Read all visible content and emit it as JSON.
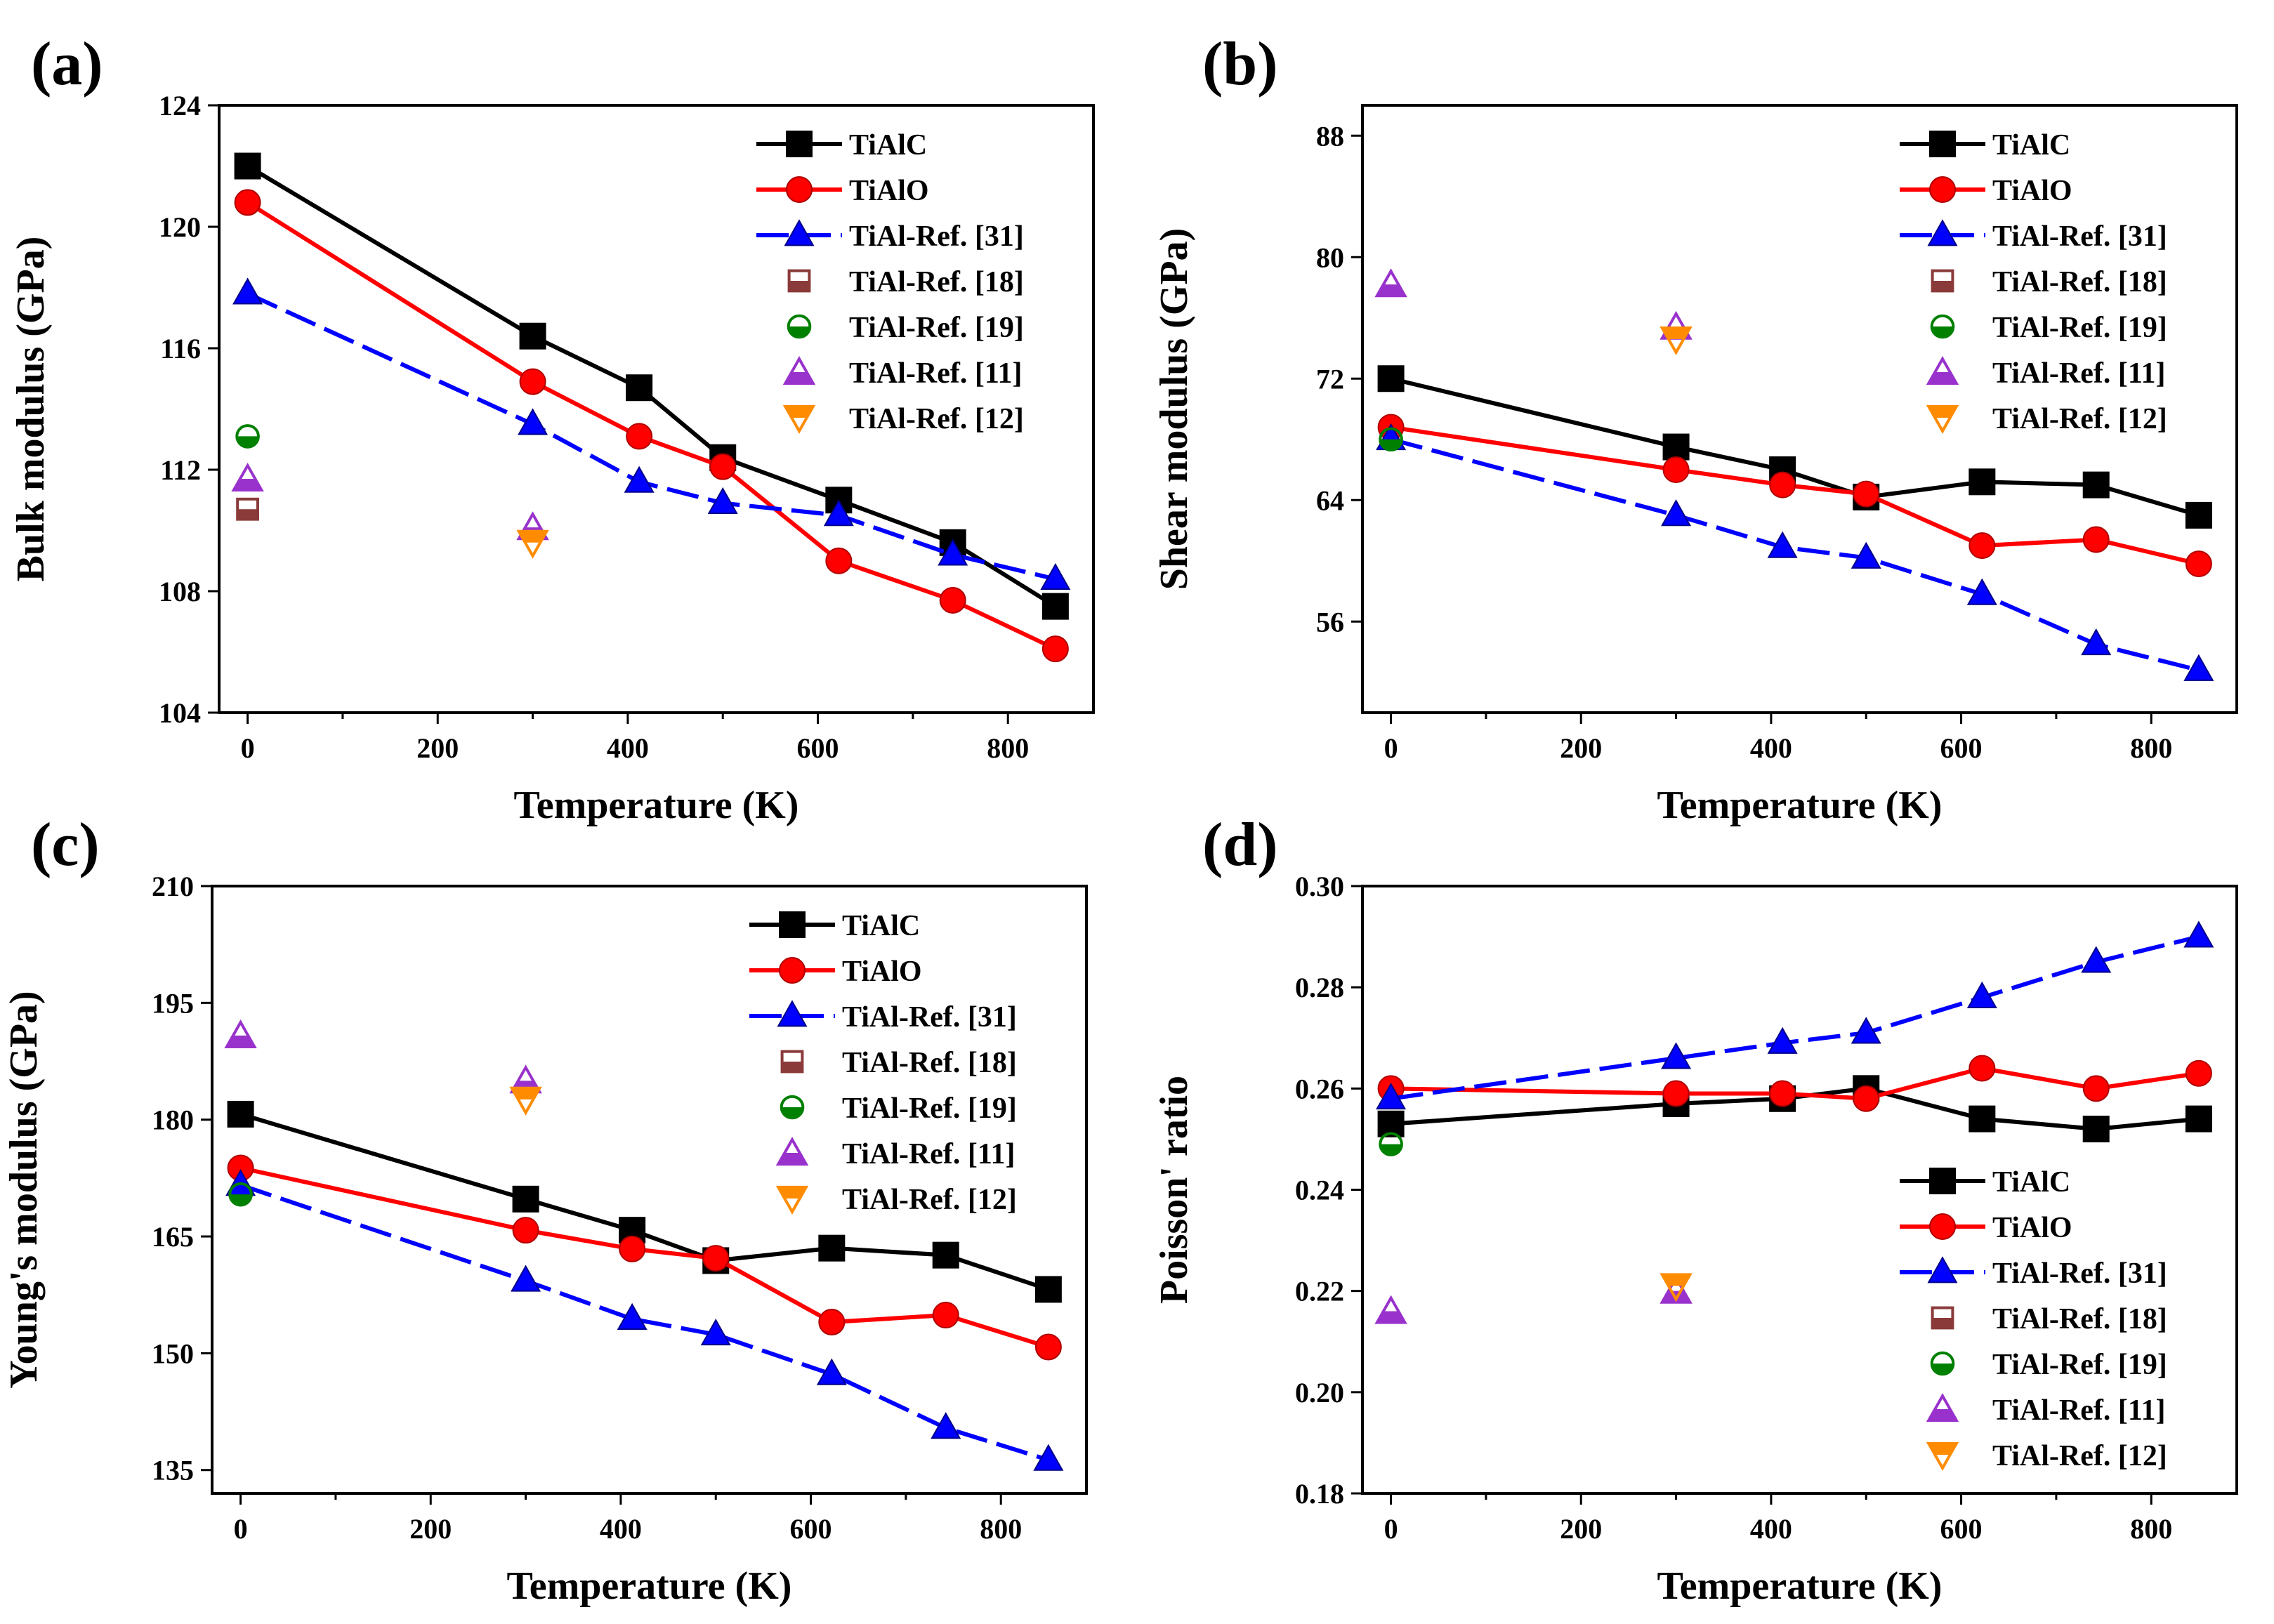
{
  "chart_data": [
    {
      "type": "line",
      "panel": "(a)",
      "xlabel": "Temperature (K)",
      "ylabel": "Bulk modulus (GPa)",
      "xlim": [
        -30,
        890
      ],
      "ylim": [
        104,
        124
      ],
      "xticks": [
        0,
        200,
        400,
        600,
        800
      ],
      "yticks": [
        104,
        108,
        112,
        116,
        120,
        124
      ],
      "legend_position": "top-right",
      "series": [
        {
          "name": "TiAlC",
          "color": "#000000",
          "marker": "square",
          "style": "solid",
          "x": [
            0,
            300,
            412,
            500,
            622,
            742,
            850
          ],
          "y": [
            122.0,
            116.4,
            114.7,
            112.4,
            111.0,
            109.6,
            107.5
          ]
        },
        {
          "name": "TiAlO",
          "color": "#ff0000",
          "marker": "circle",
          "style": "solid",
          "x": [
            0,
            300,
            412,
            500,
            622,
            742,
            850
          ],
          "y": [
            120.8,
            114.9,
            113.1,
            112.1,
            109.0,
            107.7,
            106.1
          ]
        },
        {
          "name": "TiAl-Ref. [31]",
          "color": "#0000ff",
          "marker": "triangle",
          "style": "dashed",
          "x": [
            0,
            300,
            412,
            500,
            622,
            742,
            850
          ],
          "y": [
            117.8,
            113.5,
            111.6,
            110.9,
            110.5,
            109.2,
            108.4
          ]
        },
        {
          "name": "TiAl-Ref. [18]",
          "color": "#8b3a3a",
          "marker": "half-square",
          "style": "none",
          "x": [
            0
          ],
          "y": [
            110.7
          ]
        },
        {
          "name": "TiAl-Ref. [19]",
          "color": "#008000",
          "marker": "half-circle",
          "style": "none",
          "x": [
            0
          ],
          "y": [
            113.1
          ]
        },
        {
          "name": "TiAl-Ref. [11]",
          "color": "#9932cc",
          "marker": "half-triangle-up",
          "style": "none",
          "x": [
            0,
            300
          ],
          "y": [
            111.7,
            110.1
          ]
        },
        {
          "name": "TiAl-Ref. [12]",
          "color": "#ff8c00",
          "marker": "half-triangle-down",
          "style": "none",
          "x": [
            300
          ],
          "y": [
            109.6
          ]
        }
      ]
    },
    {
      "type": "line",
      "panel": "(b)",
      "xlabel": "Temperature (K)",
      "ylabel": "Shear modulus (GPa)",
      "xlim": [
        -30,
        890
      ],
      "ylim": [
        50,
        90
      ],
      "xticks": [
        0,
        200,
        400,
        600,
        800
      ],
      "yticks": [
        56,
        64,
        72,
        80,
        88
      ],
      "legend_position": "top-right",
      "series": [
        {
          "name": "TiAlC",
          "color": "#000000",
          "marker": "square",
          "style": "solid",
          "x": [
            0,
            300,
            412,
            500,
            622,
            742,
            850
          ],
          "y": [
            72.0,
            67.5,
            66.0,
            64.2,
            65.2,
            65.0,
            63.0
          ]
        },
        {
          "name": "TiAlO",
          "color": "#ff0000",
          "marker": "circle",
          "style": "solid",
          "x": [
            0,
            300,
            412,
            500,
            622,
            742,
            850
          ],
          "y": [
            68.8,
            66.0,
            65.0,
            64.4,
            61.0,
            61.4,
            59.8
          ]
        },
        {
          "name": "TiAl-Ref. [31]",
          "color": "#0000ff",
          "marker": "triangle",
          "style": "dashed",
          "x": [
            0,
            300,
            412,
            500,
            622,
            742,
            850
          ],
          "y": [
            68.0,
            63.0,
            60.9,
            60.2,
            57.8,
            54.5,
            52.8
          ]
        },
        {
          "name": "TiAl-Ref. [18]",
          "color": "#8b3a3a",
          "marker": "half-square",
          "style": "none",
          "x": [],
          "y": []
        },
        {
          "name": "TiAl-Ref. [19]",
          "color": "#008000",
          "marker": "half-circle",
          "style": "none",
          "x": [
            0
          ],
          "y": [
            68.0
          ]
        },
        {
          "name": "TiAl-Ref. [11]",
          "color": "#9932cc",
          "marker": "half-triangle-up",
          "style": "none",
          "x": [
            0,
            300
          ],
          "y": [
            78.2,
            75.4
          ]
        },
        {
          "name": "TiAl-Ref. [12]",
          "color": "#ff8c00",
          "marker": "half-triangle-down",
          "style": "none",
          "x": [
            300
          ],
          "y": [
            74.6
          ]
        }
      ]
    },
    {
      "type": "line",
      "panel": "(c)",
      "xlabel": "Temperature (K)",
      "ylabel": "Young's modulus (GPa)",
      "xlim": [
        -30,
        890
      ],
      "ylim": [
        132,
        210
      ],
      "xticks": [
        0,
        200,
        400,
        600,
        800
      ],
      "yticks": [
        135,
        150,
        165,
        180,
        195,
        210
      ],
      "legend_position": "top-right",
      "series": [
        {
          "name": "TiAlC",
          "color": "#000000",
          "marker": "square",
          "style": "solid",
          "x": [
            0,
            300,
            412,
            500,
            622,
            742,
            850
          ],
          "y": [
            180.7,
            169.8,
            165.8,
            161.9,
            163.5,
            162.6,
            158.2
          ]
        },
        {
          "name": "TiAlO",
          "color": "#ff0000",
          "marker": "circle",
          "style": "solid",
          "x": [
            0,
            300,
            412,
            500,
            622,
            742,
            850
          ],
          "y": [
            173.8,
            165.8,
            163.4,
            162.2,
            154.0,
            154.9,
            150.8
          ]
        },
        {
          "name": "TiAl-Ref. [31]",
          "color": "#0000ff",
          "marker": "triangle",
          "style": "dashed",
          "x": [
            0,
            300,
            412,
            500,
            622,
            742,
            850
          ],
          "y": [
            171.6,
            159.3,
            154.4,
            152.4,
            147.3,
            140.4,
            136.3
          ]
        },
        {
          "name": "TiAl-Ref. [18]",
          "color": "#8b3a3a",
          "marker": "half-square",
          "style": "none",
          "x": [],
          "y": []
        },
        {
          "name": "TiAl-Ref. [19]",
          "color": "#008000",
          "marker": "half-circle",
          "style": "none",
          "x": [
            0
          ],
          "y": [
            170.4
          ]
        },
        {
          "name": "TiAl-Ref. [11]",
          "color": "#9932cc",
          "marker": "half-triangle-up",
          "style": "none",
          "x": [
            0,
            300
          ],
          "y": [
            190.8,
            185.0
          ]
        },
        {
          "name": "TiAl-Ref. [12]",
          "color": "#ff8c00",
          "marker": "half-triangle-down",
          "style": "none",
          "x": [
            300
          ],
          "y": [
            182.6
          ]
        }
      ]
    },
    {
      "type": "line",
      "panel": "(d)",
      "xlabel": "Temperature (K)",
      "ylabel": "Poisson' ratio",
      "xlim": [
        -30,
        890
      ],
      "ylim": [
        0.18,
        0.3
      ],
      "xticks": [
        0,
        200,
        400,
        600,
        800
      ],
      "yticks": [
        "0.18",
        "0.20",
        "0.22",
        "0.24",
        "0.26",
        "0.28",
        "0.30"
      ],
      "legend_position": "bottom-right",
      "series": [
        {
          "name": "TiAlC",
          "color": "#000000",
          "marker": "square",
          "style": "solid",
          "x": [
            0,
            300,
            412,
            500,
            622,
            742,
            850
          ],
          "y": [
            0.253,
            0.257,
            0.258,
            0.26,
            0.254,
            0.252,
            0.254
          ]
        },
        {
          "name": "TiAlO",
          "color": "#ff0000",
          "marker": "circle",
          "style": "solid",
          "x": [
            0,
            300,
            412,
            500,
            622,
            742,
            850
          ],
          "y": [
            0.26,
            0.259,
            0.259,
            0.258,
            0.264,
            0.26,
            0.263
          ]
        },
        {
          "name": "TiAl-Ref. [31]",
          "color": "#0000ff",
          "marker": "triangle",
          "style": "dashed",
          "x": [
            0,
            300,
            412,
            500,
            622,
            742,
            850
          ],
          "y": [
            0.258,
            0.266,
            0.269,
            0.271,
            0.278,
            0.285,
            0.29
          ]
        },
        {
          "name": "TiAl-Ref. [18]",
          "color": "#8b3a3a",
          "marker": "half-square",
          "style": "none",
          "x": [],
          "y": []
        },
        {
          "name": "TiAl-Ref. [19]",
          "color": "#008000",
          "marker": "half-circle",
          "style": "none",
          "x": [
            0
          ],
          "y": [
            0.249
          ]
        },
        {
          "name": "TiAl-Ref. [11]",
          "color": "#9932cc",
          "marker": "half-triangle-up",
          "style": "none",
          "x": [
            0,
            300
          ],
          "y": [
            0.216,
            0.22
          ]
        },
        {
          "name": "TiAl-Ref. [12]",
          "color": "#ff8c00",
          "marker": "half-triangle-down",
          "style": "none",
          "x": [
            300
          ],
          "y": [
            0.221
          ]
        }
      ]
    }
  ]
}
